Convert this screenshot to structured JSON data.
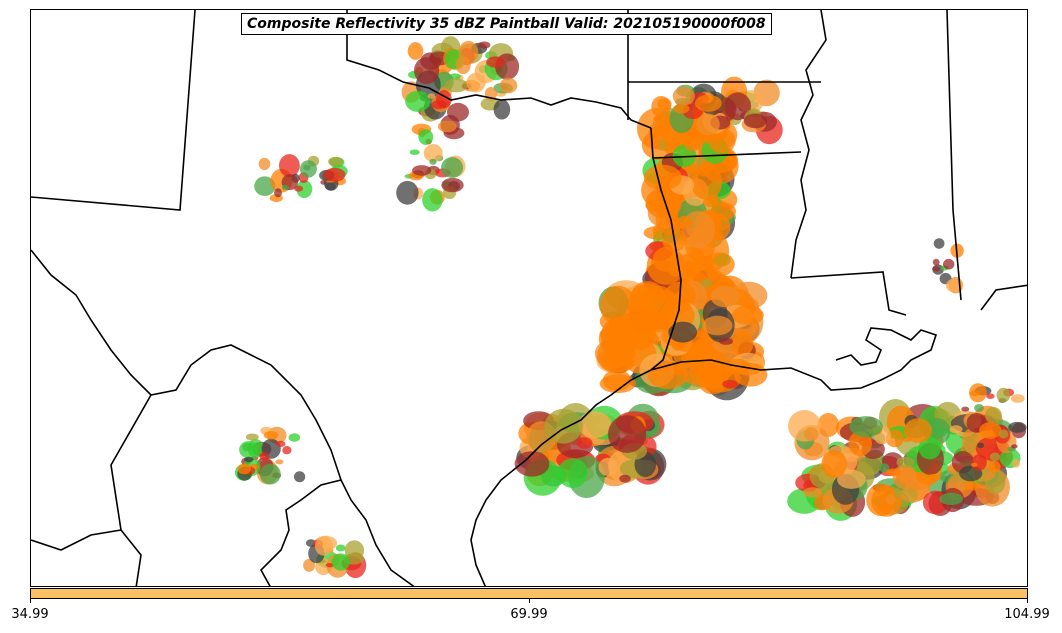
{
  "title": "Composite Reflectivity 35 dBZ Paintball Valid: 202105190000f008",
  "colorbar": {
    "color": "#fcc064",
    "ticks": [
      "34.99",
      "69.99",
      "104.99"
    ]
  },
  "map": {
    "region": "Texas / Louisiana Gulf Coast",
    "boundary_color": "#000000",
    "paint_colors": [
      "#f28c28",
      "#e8261e",
      "#9c2a2a",
      "#a8a232",
      "#4aa54a",
      "#2ed12e",
      "#404040",
      "#fcab4f",
      "#ff7f00"
    ]
  }
}
